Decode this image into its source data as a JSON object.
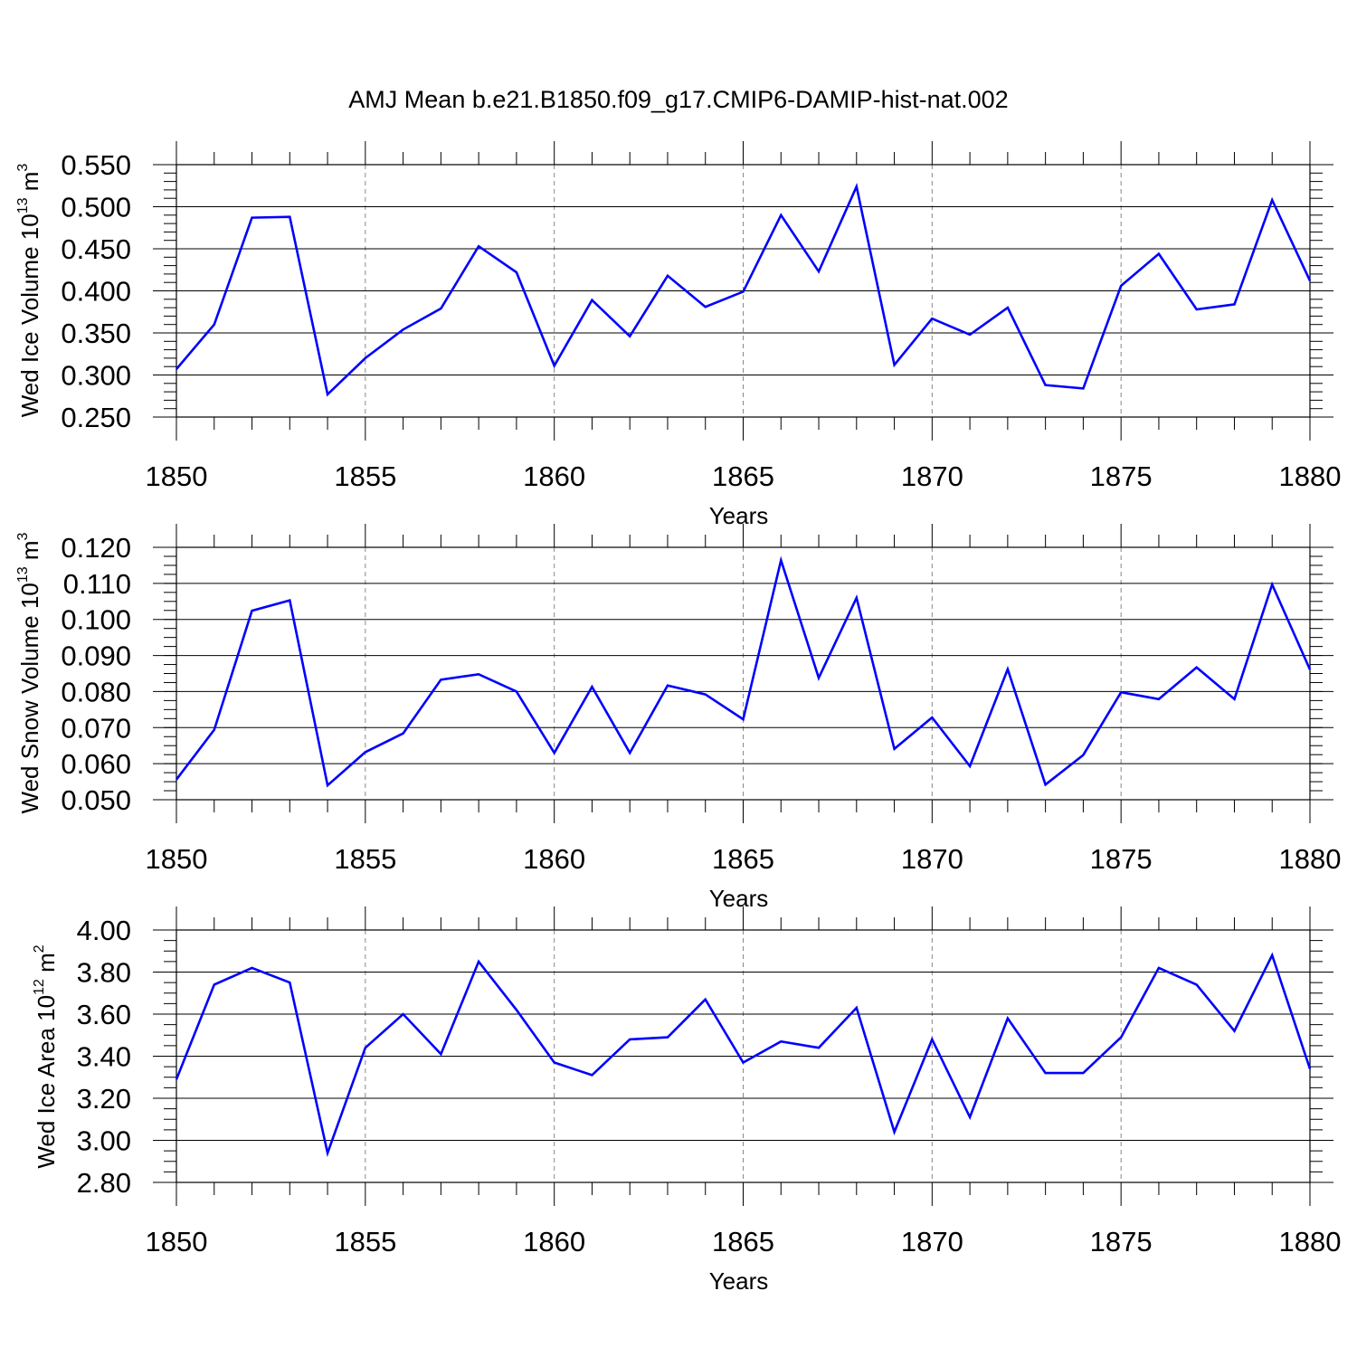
{
  "title": "AMJ Mean b.e21.B1850.f09_g17.CMIP6-DAMIP-hist-nat.002",
  "chart_data": [
    {
      "type": "line",
      "title": "AMJ Mean b.e21.B1850.f09_g17.CMIP6-DAMIP-hist-nat.002",
      "ylabel_main": "Wed Ice Volume 10",
      "ylabel_exp": "13",
      "ylabel_unit": " m",
      "ylabel_unit_exp": "3",
      "xlabel": "Years",
      "xlim": [
        1850,
        1880
      ],
      "ylim": [
        0.25,
        0.55
      ],
      "yticks": [
        "0.250",
        "0.300",
        "0.350",
        "0.400",
        "0.450",
        "0.500",
        "0.550"
      ],
      "xticks": [
        "1850",
        "1855",
        "1860",
        "1865",
        "1870",
        "1875",
        "1880"
      ],
      "grid": "vertical dashed at major x ticks",
      "color": "#0000ff",
      "x": [
        1850,
        1851,
        1852,
        1853,
        1854,
        1855,
        1856,
        1857,
        1858,
        1859,
        1860,
        1861,
        1862,
        1863,
        1864,
        1865,
        1866,
        1867,
        1868,
        1869,
        1870,
        1871,
        1872,
        1873,
        1874,
        1875,
        1876,
        1877,
        1878,
        1879,
        1880
      ],
      "values": [
        0.307,
        0.36,
        0.487,
        0.488,
        0.277,
        0.32,
        0.354,
        0.379,
        0.453,
        0.422,
        0.311,
        0.389,
        0.346,
        0.418,
        0.381,
        0.399,
        0.49,
        0.423,
        0.524,
        0.312,
        0.367,
        0.348,
        0.38,
        0.288,
        0.284,
        0.406,
        0.444,
        0.378,
        0.384,
        0.508,
        0.412
      ]
    },
    {
      "type": "line",
      "ylabel_main": "Wed Snow Volume 10",
      "ylabel_exp": "13",
      "ylabel_unit": " m",
      "ylabel_unit_exp": "3",
      "xlabel": "Years",
      "xlim": [
        1850,
        1880
      ],
      "ylim": [
        0.05,
        0.12
      ],
      "yticks": [
        "0.050",
        "0.060",
        "0.070",
        "0.080",
        "0.090",
        "0.100",
        "0.110",
        "0.120"
      ],
      "xticks": [
        "1850",
        "1855",
        "1860",
        "1865",
        "1870",
        "1875",
        "1880"
      ],
      "grid": "vertical dashed at major x ticks",
      "color": "#0000ff",
      "x": [
        1850,
        1851,
        1852,
        1853,
        1854,
        1855,
        1856,
        1857,
        1858,
        1859,
        1860,
        1861,
        1862,
        1863,
        1864,
        1865,
        1866,
        1867,
        1868,
        1869,
        1870,
        1871,
        1872,
        1873,
        1874,
        1875,
        1876,
        1877,
        1878,
        1879,
        1880
      ],
      "values": [
        0.0556,
        0.0694,
        0.1024,
        0.1053,
        0.054,
        0.0632,
        0.0684,
        0.0833,
        0.0848,
        0.08,
        0.063,
        0.0813,
        0.063,
        0.0817,
        0.0792,
        0.0723,
        0.1164,
        0.0838,
        0.106,
        0.0641,
        0.0728,
        0.0593,
        0.0862,
        0.0542,
        0.0624,
        0.0798,
        0.0779,
        0.0867,
        0.0779,
        0.1097,
        0.0861
      ]
    },
    {
      "type": "line",
      "ylabel_main": "Wed Ice Area 10",
      "ylabel_exp": "12",
      "ylabel_unit": " m",
      "ylabel_unit_exp": "2",
      "xlabel": "Years",
      "xlim": [
        1850,
        1880
      ],
      "ylim": [
        2.8,
        4.0
      ],
      "yticks": [
        "2.80",
        "3.00",
        "3.20",
        "3.40",
        "3.60",
        "3.80",
        "4.00"
      ],
      "xticks": [
        "1850",
        "1855",
        "1860",
        "1865",
        "1870",
        "1875",
        "1880"
      ],
      "grid": "vertical dashed at major x ticks",
      "color": "#0000ff",
      "x": [
        1850,
        1851,
        1852,
        1853,
        1854,
        1855,
        1856,
        1857,
        1858,
        1859,
        1860,
        1861,
        1862,
        1863,
        1864,
        1865,
        1866,
        1867,
        1868,
        1869,
        1870,
        1871,
        1872,
        1873,
        1874,
        1875,
        1876,
        1877,
        1878,
        1879,
        1880
      ],
      "values": [
        3.29,
        3.74,
        3.82,
        3.75,
        2.94,
        3.44,
        3.6,
        3.41,
        3.85,
        3.62,
        3.37,
        3.31,
        3.48,
        3.49,
        3.67,
        3.37,
        3.47,
        3.44,
        3.63,
        3.04,
        3.48,
        3.11,
        3.58,
        3.32,
        3.32,
        3.49,
        3.82,
        3.74,
        3.52,
        3.88,
        3.34
      ]
    }
  ]
}
